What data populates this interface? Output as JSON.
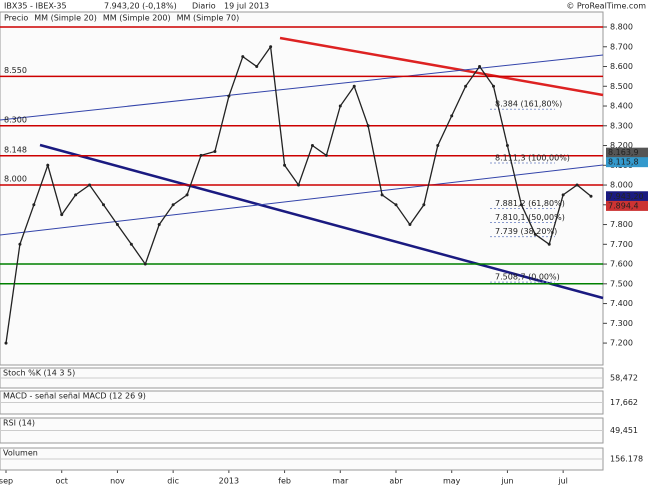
{
  "chart_data": {
    "type": "line",
    "header": {
      "symbol": "IBX35 - IBEX-35",
      "quote": "7.943,20 (-0,18%)",
      "period": "Diario",
      "date": "19 jul 2013",
      "brand": "© ProRealTime.com"
    },
    "legend": [
      "Precio",
      "MM (Simple 20)",
      "MM (Simple 200)",
      "MM (Simple 70)"
    ],
    "categories": [
      "sep",
      null,
      null,
      null,
      "oct",
      null,
      null,
      null,
      "nov",
      null,
      null,
      null,
      "dic",
      null,
      null,
      null,
      "2013",
      null,
      null,
      null,
      "feb",
      null,
      null,
      null,
      "mar",
      null,
      null,
      null,
      "abr",
      null,
      null,
      null,
      "may",
      null,
      null,
      null,
      "jun",
      null,
      null,
      null,
      "jul",
      null,
      null
    ],
    "series": [
      {
        "name": "Precio",
        "color": "#222222",
        "values": [
          7200,
          7700,
          7900,
          8100,
          7850,
          7950,
          8000,
          7900,
          7800,
          7700,
          7600,
          7800,
          7900,
          7950,
          8150,
          8170,
          8450,
          8650,
          8600,
          8700,
          8100,
          8000,
          8200,
          8150,
          8400,
          8500,
          8300,
          7950,
          7900,
          7800,
          7900,
          8200,
          8350,
          8500,
          8600,
          8500,
          8200,
          7900,
          7750,
          7700,
          7950,
          8000,
          7943.2
        ]
      }
    ],
    "ylim": [
      7089,
      8876
    ],
    "yticks": [
      {
        "value": 7200,
        "label": "7.200"
      },
      {
        "value": 7300,
        "label": "7.300"
      },
      {
        "value": 7400,
        "label": "7.400"
      },
      {
        "value": 7500,
        "label": "7.500"
      },
      {
        "value": 7600,
        "label": "7.600"
      },
      {
        "value": 7700,
        "label": "7.700"
      },
      {
        "value": 7800,
        "label": "7.800"
      },
      {
        "value": 7900,
        "label": "7.900"
      },
      {
        "value": 8000,
        "label": "8.000"
      },
      {
        "value": 8100,
        "label": "8.100"
      },
      {
        "value": 8200,
        "label": "8.200"
      },
      {
        "value": 8300,
        "label": "8.300"
      },
      {
        "value": 8400,
        "label": "8.400"
      },
      {
        "value": 8500,
        "label": "8.500"
      },
      {
        "value": 8600,
        "label": "8.600"
      },
      {
        "value": 8700,
        "label": "8.700"
      },
      {
        "value": 8800,
        "label": "8.800"
      }
    ],
    "levels": [
      {
        "value": 8800,
        "color": "#cc0000"
      },
      {
        "value": 8550,
        "color": "#cc0000",
        "label": "8.550"
      },
      {
        "value": 8300,
        "color": "#cc0000",
        "label": "8.300"
      },
      {
        "value": 8148,
        "color": "#cc0000",
        "label": "8.148"
      },
      {
        "value": 8000,
        "color": "#cc0000",
        "label": "8.000"
      },
      {
        "value": 7600,
        "color": "#008000"
      },
      {
        "value": 7500,
        "color": "#008000"
      }
    ],
    "fibo": [
      {
        "value": 8384,
        "label": "8.384 (161,80%)"
      },
      {
        "value": 8111.3,
        "label": "8.111,3 (100,00%)"
      },
      {
        "value": 7881.2,
        "label": "7.881,2 (61,80%)"
      },
      {
        "value": 7810.1,
        "label": "7.810,1 (50,00%)"
      },
      {
        "value": 7739,
        "label": "7.739 (38,20%)"
      },
      {
        "value": 7508.7,
        "label": "7.508,7 (0,00%)"
      }
    ],
    "right_tags": [
      {
        "value": 8163.9,
        "label": "8.163,9",
        "color": "#555555"
      },
      {
        "value": 8115.8,
        "label": "8.115,8",
        "color": "#3399cc"
      },
      {
        "value": 7943.2,
        "label": "7.943,20",
        "color": "#1a1a80"
      },
      {
        "value": 7894.4,
        "label": "7.894,4",
        "color": "#cc3333"
      }
    ],
    "panels": [
      {
        "title": "Stoch %K (14 3 5)",
        "last": {
          "value": 58.472,
          "label": "58,472"
        }
      },
      {
        "title": "MACD - señal  señal  MACD (12 26 9)",
        "last": {
          "value": 17.662,
          "label": "17,662"
        }
      },
      {
        "title": "RSI (14)",
        "last": {
          "value": 49.451,
          "label": "49,451"
        }
      },
      {
        "title": "Volumen",
        "last": {
          "value": 156178,
          "label": "156.178"
        }
      }
    ]
  }
}
